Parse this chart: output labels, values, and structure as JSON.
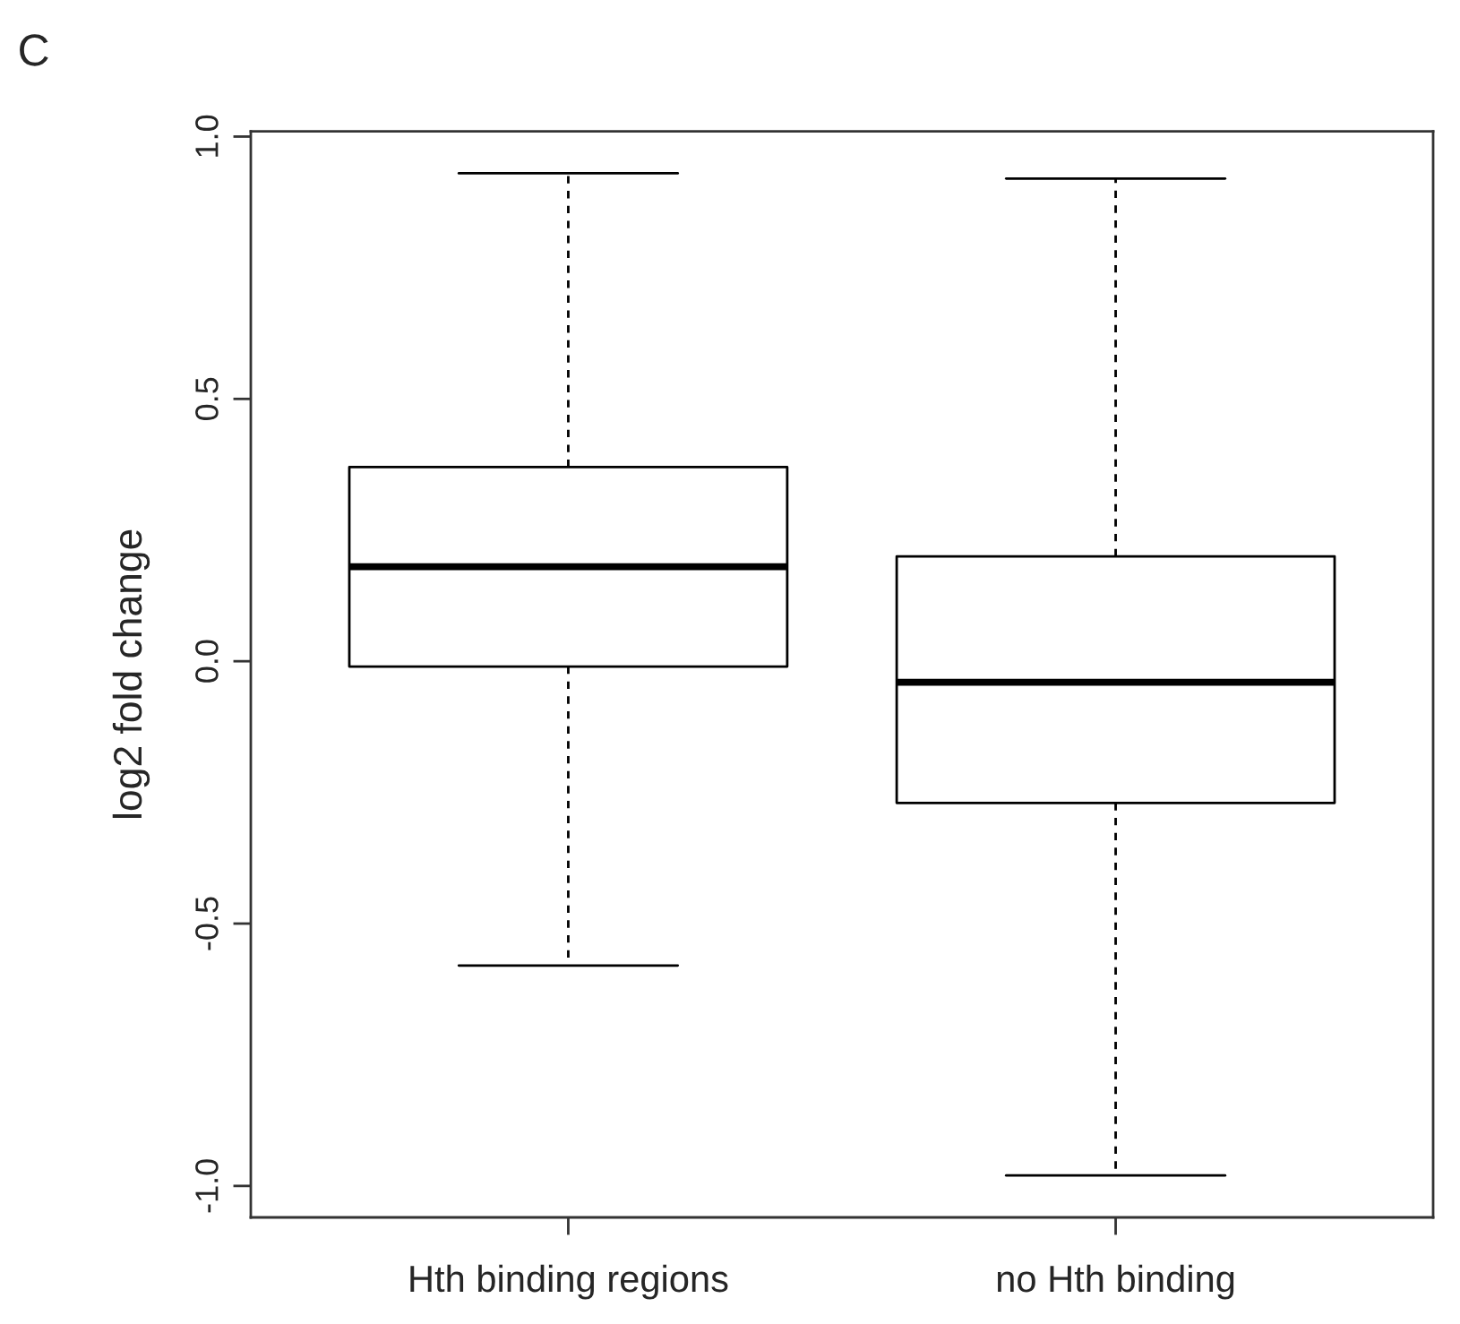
{
  "chart_data": {
    "type": "box",
    "ylabel": "log2 fold change",
    "annotations": [
      "C"
    ],
    "categories": [
      "Hth binding regions",
      "no Hth binding"
    ],
    "boxes": [
      {
        "low": -0.58,
        "q1": -0.01,
        "median": 0.18,
        "q3": 0.37,
        "high": 0.93
      },
      {
        "low": -0.98,
        "q1": -0.27,
        "median": -0.04,
        "q3": 0.2,
        "high": 0.92
      }
    ],
    "color": "#000000",
    "ylim": [
      -1.06,
      1.01
    ],
    "yticks": [
      {
        "value": -1,
        "label": "-1.0"
      },
      {
        "value": -0.5,
        "label": "-0.5"
      },
      {
        "value": 0,
        "label": "0.0"
      },
      {
        "value": 0.5,
        "label": "0.5"
      },
      {
        "value": 1,
        "label": "1.0"
      }
    ],
    "grid": false,
    "legend": false
  }
}
